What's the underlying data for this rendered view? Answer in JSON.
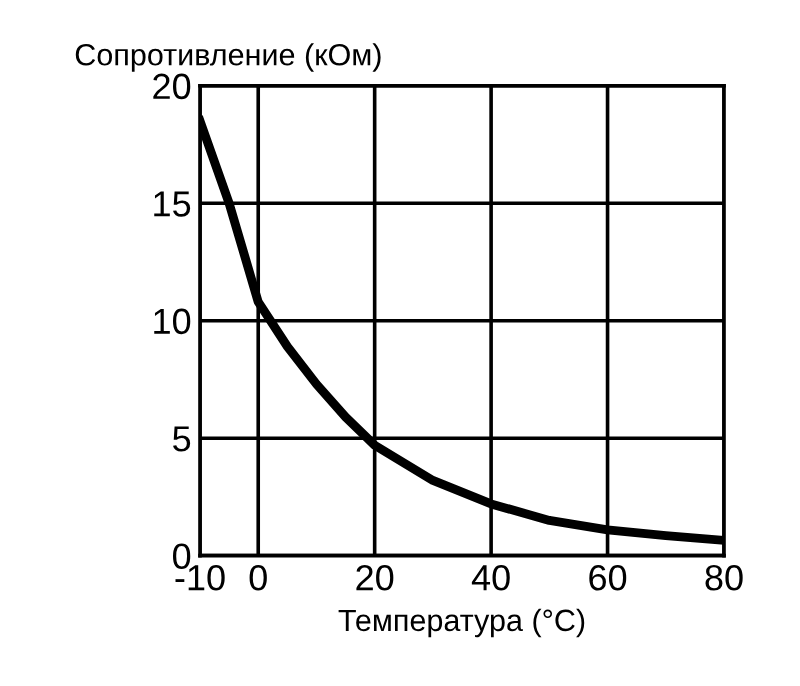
{
  "chart_data": {
    "type": "line",
    "xlabel": "Температура (°C)",
    "ylabel": "Сопротивление (кОм)",
    "x": [
      -10,
      -5,
      0,
      5,
      10,
      15,
      20,
      30,
      40,
      50,
      60,
      70,
      80
    ],
    "series": [
      {
        "color": "#000000",
        "values": [
          18.5,
          15,
          10.8,
          8.9,
          7.3,
          5.9,
          4.7,
          3.2,
          2.2,
          1.5,
          1.1,
          0.85,
          0.65
        ]
      }
    ],
    "xlim": [
      -10,
      80
    ],
    "xticks": [
      -10,
      0,
      20,
      40,
      60,
      80
    ],
    "ylim": [
      0,
      20
    ],
    "yticks": [
      0,
      5,
      10,
      15,
      20
    ],
    "grid": true,
    "legend": false,
    "marker": "none",
    "line_style": "solid"
  }
}
